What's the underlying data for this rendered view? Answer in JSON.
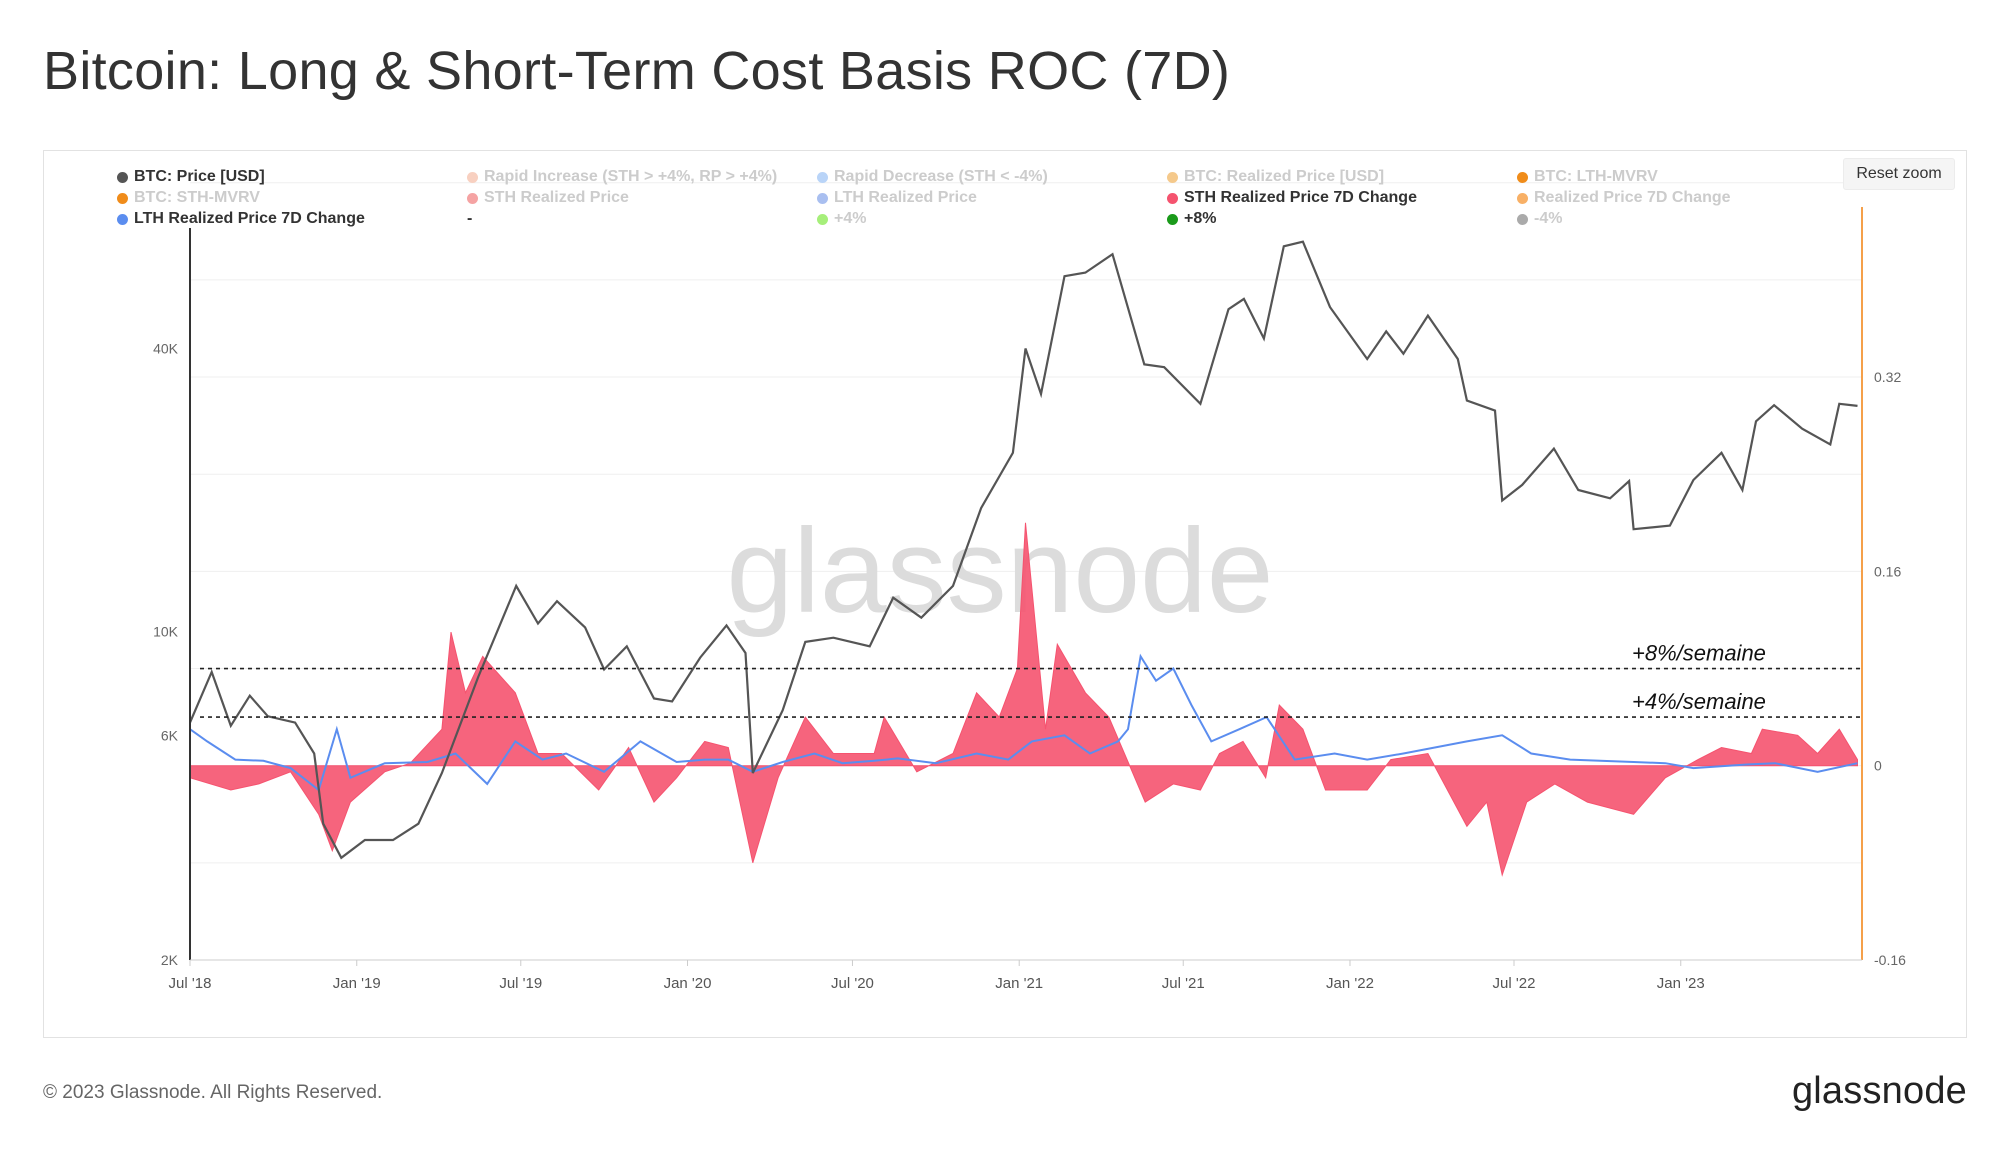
{
  "title": "Bitcoin: Long & Short-Term Cost Basis ROC (7D)",
  "reset_zoom_label": "Reset zoom",
  "watermark": "glassnode",
  "footer": {
    "copyright": "© 2023 Glassnode. All Rights Reserved.",
    "logo": "glassnode"
  },
  "legend": [
    {
      "label": "BTC: Price [USD]",
      "color": "#555555",
      "active": true
    },
    {
      "label": "Rapid Increase (STH > +4%, RP > +4%)",
      "color": "#f8d0c0",
      "active": false
    },
    {
      "label": "Rapid Decrease (STH < -4%)",
      "color": "#b9d4f8",
      "active": false
    },
    {
      "label": "BTC: Realized Price [USD]",
      "color": "#f5c98b",
      "active": false
    },
    {
      "label": "BTC: LTH-MVRV",
      "color": "#f08c1a",
      "active": false
    },
    {
      "label": "BTC: STH-MVRV",
      "color": "#f08c1a",
      "active": false
    },
    {
      "label": "STH Realized Price",
      "color": "#f5a3a3",
      "active": false
    },
    {
      "label": "LTH Realized Price",
      "color": "#a9bff0",
      "active": false
    },
    {
      "label": "STH Realized Price 7D Change",
      "color": "#f5536f",
      "active": true
    },
    {
      "label": "Realized Price 7D Change",
      "color": "#f8b066",
      "active": false
    },
    {
      "label": "LTH Realized Price 7D Change",
      "color": "#5b8def",
      "active": true
    },
    {
      "label": "-",
      "color": "",
      "active": true
    },
    {
      "label": "+4%",
      "color": "#a6ef7a",
      "active": false
    },
    {
      "label": "+8%",
      "color": "#1a9a1a",
      "active": true
    },
    {
      "label": "-4%",
      "color": "#aaaaaa",
      "active": false
    }
  ],
  "chart_data": {
    "type": "line",
    "title": "Bitcoin: Long & Short-Term Cost Basis ROC (7D)",
    "x_ticks": [
      "Jul '18",
      "Jan '19",
      "Jul '19",
      "Jan '20",
      "Jul '20",
      "Jan '21",
      "Jul '21",
      "Jan '22",
      "Jul '22",
      "Jan '23"
    ],
    "x_range": [
      "2018-07-01",
      "2023-07-20"
    ],
    "y_left": {
      "scale": "log",
      "ticks": [
        "2K",
        "6K",
        "10K",
        "40K"
      ],
      "tick_values": [
        2000,
        6000,
        10000,
        40000
      ],
      "range": [
        2000,
        80000
      ]
    },
    "y_right": {
      "scale": "linear",
      "ticks": [
        "-0.16",
        "0",
        "0.16",
        "0.32"
      ],
      "tick_values": [
        -0.16,
        0,
        0.16,
        0.32
      ],
      "range": [
        -0.16,
        0.46
      ]
    },
    "annotations": [
      {
        "label": "+8%/semaine",
        "value": 0.08
      },
      {
        "label": "+4%/semaine",
        "value": 0.04
      }
    ],
    "series": [
      {
        "name": "BTC: Price [USD]",
        "axis": "left",
        "color": "#555555",
        "points": [
          [
            "2018-07-01",
            6400
          ],
          [
            "2018-07-25",
            8200
          ],
          [
            "2018-08-15",
            6300
          ],
          [
            "2018-09-05",
            7300
          ],
          [
            "2018-09-25",
            6600
          ],
          [
            "2018-10-25",
            6400
          ],
          [
            "2018-11-15",
            5500
          ],
          [
            "2018-11-25",
            3900
          ],
          [
            "2018-12-15",
            3300
          ],
          [
            "2019-01-10",
            3600
          ],
          [
            "2019-02-10",
            3600
          ],
          [
            "2019-03-10",
            3900
          ],
          [
            "2019-04-05",
            5000
          ],
          [
            "2019-05-15",
            8000
          ],
          [
            "2019-06-26",
            12500
          ],
          [
            "2019-07-20",
            10400
          ],
          [
            "2019-08-10",
            11600
          ],
          [
            "2019-09-10",
            10200
          ],
          [
            "2019-10-01",
            8300
          ],
          [
            "2019-10-26",
            9300
          ],
          [
            "2019-11-25",
            7200
          ],
          [
            "2019-12-15",
            7100
          ],
          [
            "2020-01-15",
            8800
          ],
          [
            "2020-02-13",
            10300
          ],
          [
            "2020-03-05",
            9000
          ],
          [
            "2020-03-13",
            5000
          ],
          [
            "2020-04-15",
            6800
          ],
          [
            "2020-05-10",
            9500
          ],
          [
            "2020-06-10",
            9700
          ],
          [
            "2020-07-20",
            9300
          ],
          [
            "2020-08-15",
            11800
          ],
          [
            "2020-09-15",
            10700
          ],
          [
            "2020-10-20",
            12500
          ],
          [
            "2020-11-20",
            18300
          ],
          [
            "2020-12-25",
            24000
          ],
          [
            "2021-01-08",
            40000
          ],
          [
            "2021-01-25",
            32000
          ],
          [
            "2021-02-20",
            57000
          ],
          [
            "2021-03-15",
            58000
          ],
          [
            "2021-04-14",
            63500
          ],
          [
            "2021-05-19",
            37000
          ],
          [
            "2021-06-10",
            36500
          ],
          [
            "2021-07-20",
            30500
          ],
          [
            "2021-08-20",
            48500
          ],
          [
            "2021-09-06",
            51000
          ],
          [
            "2021-09-28",
            42000
          ],
          [
            "2021-10-20",
            66000
          ],
          [
            "2021-11-10",
            67500
          ],
          [
            "2021-12-10",
            49000
          ],
          [
            "2022-01-20",
            38000
          ],
          [
            "2022-02-10",
            43500
          ],
          [
            "2022-03-01",
            39000
          ],
          [
            "2022-03-28",
            47000
          ],
          [
            "2022-04-30",
            38000
          ],
          [
            "2022-05-10",
            31000
          ],
          [
            "2022-06-10",
            29500
          ],
          [
            "2022-06-18",
            19000
          ],
          [
            "2022-07-10",
            20500
          ],
          [
            "2022-08-14",
            24500
          ],
          [
            "2022-09-10",
            20000
          ],
          [
            "2022-10-15",
            19200
          ],
          [
            "2022-11-05",
            20900
          ],
          [
            "2022-11-10",
            16500
          ],
          [
            "2022-12-20",
            16800
          ],
          [
            "2023-01-15",
            21000
          ],
          [
            "2023-02-15",
            24000
          ],
          [
            "2023-03-10",
            20000
          ],
          [
            "2023-03-25",
            28000
          ],
          [
            "2023-04-14",
            30300
          ],
          [
            "2023-05-15",
            27000
          ],
          [
            "2023-06-15",
            25000
          ],
          [
            "2023-06-25",
            30500
          ],
          [
            "2023-07-15",
            30200
          ]
        ]
      },
      {
        "name": "STH Realized Price 7D Change",
        "axis": "right",
        "color": "#f5536f",
        "type": "area",
        "points": [
          [
            "2018-07-01",
            -0.01
          ],
          [
            "2018-08-15",
            -0.02
          ],
          [
            "2018-09-15",
            -0.015
          ],
          [
            "2018-10-20",
            -0.005
          ],
          [
            "2018-11-20",
            -0.04
          ],
          [
            "2018-12-05",
            -0.07
          ],
          [
            "2018-12-25",
            -0.03
          ],
          [
            "2019-02-01",
            -0.005
          ],
          [
            "2019-03-01",
            0.002
          ],
          [
            "2019-04-05",
            0.03
          ],
          [
            "2019-04-15",
            0.11
          ],
          [
            "2019-05-01",
            0.06
          ],
          [
            "2019-05-20",
            0.09
          ],
          [
            "2019-06-25",
            0.06
          ],
          [
            "2019-07-20",
            0.01
          ],
          [
            "2019-08-15",
            0.01
          ],
          [
            "2019-09-25",
            -0.02
          ],
          [
            "2019-10-28",
            0.015
          ],
          [
            "2019-11-25",
            -0.03
          ],
          [
            "2019-12-20",
            -0.01
          ],
          [
            "2020-01-20",
            0.02
          ],
          [
            "2020-02-15",
            0.015
          ],
          [
            "2020-03-13",
            -0.08
          ],
          [
            "2020-04-10",
            -0.01
          ],
          [
            "2020-05-10",
            0.04
          ],
          [
            "2020-06-10",
            0.01
          ],
          [
            "2020-07-25",
            0.01
          ],
          [
            "2020-08-05",
            0.04
          ],
          [
            "2020-09-10",
            -0.005
          ],
          [
            "2020-10-20",
            0.01
          ],
          [
            "2020-11-15",
            0.06
          ],
          [
            "2020-12-10",
            0.04
          ],
          [
            "2020-12-30",
            0.08
          ],
          [
            "2021-01-08",
            0.2
          ],
          [
            "2021-01-30",
            0.03
          ],
          [
            "2021-02-12",
            0.1
          ],
          [
            "2021-03-15",
            0.06
          ],
          [
            "2021-04-10",
            0.04
          ],
          [
            "2021-05-20",
            -0.03
          ],
          [
            "2021-06-20",
            -0.015
          ],
          [
            "2021-07-20",
            -0.02
          ],
          [
            "2021-08-10",
            0.01
          ],
          [
            "2021-09-05",
            0.02
          ],
          [
            "2021-09-30",
            -0.01
          ],
          [
            "2021-10-15",
            0.05
          ],
          [
            "2021-11-10",
            0.03
          ],
          [
            "2021-12-05",
            -0.02
          ],
          [
            "2022-01-20",
            -0.02
          ],
          [
            "2022-02-15",
            0.005
          ],
          [
            "2022-03-28",
            0.01
          ],
          [
            "2022-05-10",
            -0.05
          ],
          [
            "2022-06-01",
            -0.03
          ],
          [
            "2022-06-18",
            -0.09
          ],
          [
            "2022-07-15",
            -0.03
          ],
          [
            "2022-08-15",
            -0.015
          ],
          [
            "2022-09-20",
            -0.03
          ],
          [
            "2022-11-10",
            -0.04
          ],
          [
            "2022-12-15",
            -0.01
          ],
          [
            "2023-01-20",
            0.005
          ],
          [
            "2023-02-15",
            0.015
          ],
          [
            "2023-03-20",
            0.01
          ],
          [
            "2023-04-01",
            0.03
          ],
          [
            "2023-05-10",
            0.025
          ],
          [
            "2023-06-01",
            0.01
          ],
          [
            "2023-06-25",
            0.03
          ],
          [
            "2023-07-15",
            0.005
          ]
        ]
      },
      {
        "name": "LTH Realized Price 7D Change",
        "axis": "right",
        "color": "#5b8def",
        "points": [
          [
            "2018-07-01",
            0.03
          ],
          [
            "2018-07-20",
            0.02
          ],
          [
            "2018-08-20",
            0.005
          ],
          [
            "2018-09-20",
            0.004
          ],
          [
            "2018-10-20",
            -0.002
          ],
          [
            "2018-11-20",
            -0.02
          ],
          [
            "2018-12-10",
            0.03
          ],
          [
            "2018-12-25",
            -0.01
          ],
          [
            "2019-02-01",
            0.002
          ],
          [
            "2019-03-20",
            0.003
          ],
          [
            "2019-04-20",
            0.01
          ],
          [
            "2019-05-25",
            -0.015
          ],
          [
            "2019-06-25",
            0.02
          ],
          [
            "2019-07-25",
            0.005
          ],
          [
            "2019-08-20",
            0.01
          ],
          [
            "2019-10-01",
            -0.005
          ],
          [
            "2019-11-10",
            0.02
          ],
          [
            "2019-12-20",
            0.003
          ],
          [
            "2020-01-20",
            0.005
          ],
          [
            "2020-02-15",
            0.005
          ],
          [
            "2020-03-13",
            -0.005
          ],
          [
            "2020-04-15",
            0.003
          ],
          [
            "2020-05-20",
            0.01
          ],
          [
            "2020-06-20",
            0.002
          ],
          [
            "2020-07-25",
            0.004
          ],
          [
            "2020-08-20",
            0.006
          ],
          [
            "2020-10-01",
            0.002
          ],
          [
            "2020-11-15",
            0.01
          ],
          [
            "2020-12-20",
            0.005
          ],
          [
            "2021-01-15",
            0.02
          ],
          [
            "2021-02-20",
            0.025
          ],
          [
            "2021-03-20",
            0.01
          ],
          [
            "2021-04-20",
            0.02
          ],
          [
            "2021-05-01",
            0.03
          ],
          [
            "2021-05-15",
            0.09
          ],
          [
            "2021-06-01",
            0.07
          ],
          [
            "2021-06-20",
            0.08
          ],
          [
            "2021-07-10",
            0.05
          ],
          [
            "2021-08-01",
            0.02
          ],
          [
            "2021-09-01",
            0.03
          ],
          [
            "2021-10-01",
            0.04
          ],
          [
            "2021-11-01",
            0.005
          ],
          [
            "2021-12-15",
            0.01
          ],
          [
            "2022-01-20",
            0.005
          ],
          [
            "2022-03-01",
            0.01
          ],
          [
            "2022-05-10",
            0.02
          ],
          [
            "2022-06-18",
            0.025
          ],
          [
            "2022-07-20",
            0.01
          ],
          [
            "2022-09-01",
            0.005
          ],
          [
            "2022-11-10",
            0.003
          ],
          [
            "2022-12-15",
            0.002
          ],
          [
            "2023-01-15",
            -0.002
          ],
          [
            "2023-03-15",
            0.001
          ],
          [
            "2023-04-15",
            0.002
          ],
          [
            "2023-06-01",
            -0.005
          ],
          [
            "2023-07-15",
            0.002
          ]
        ]
      }
    ]
  }
}
